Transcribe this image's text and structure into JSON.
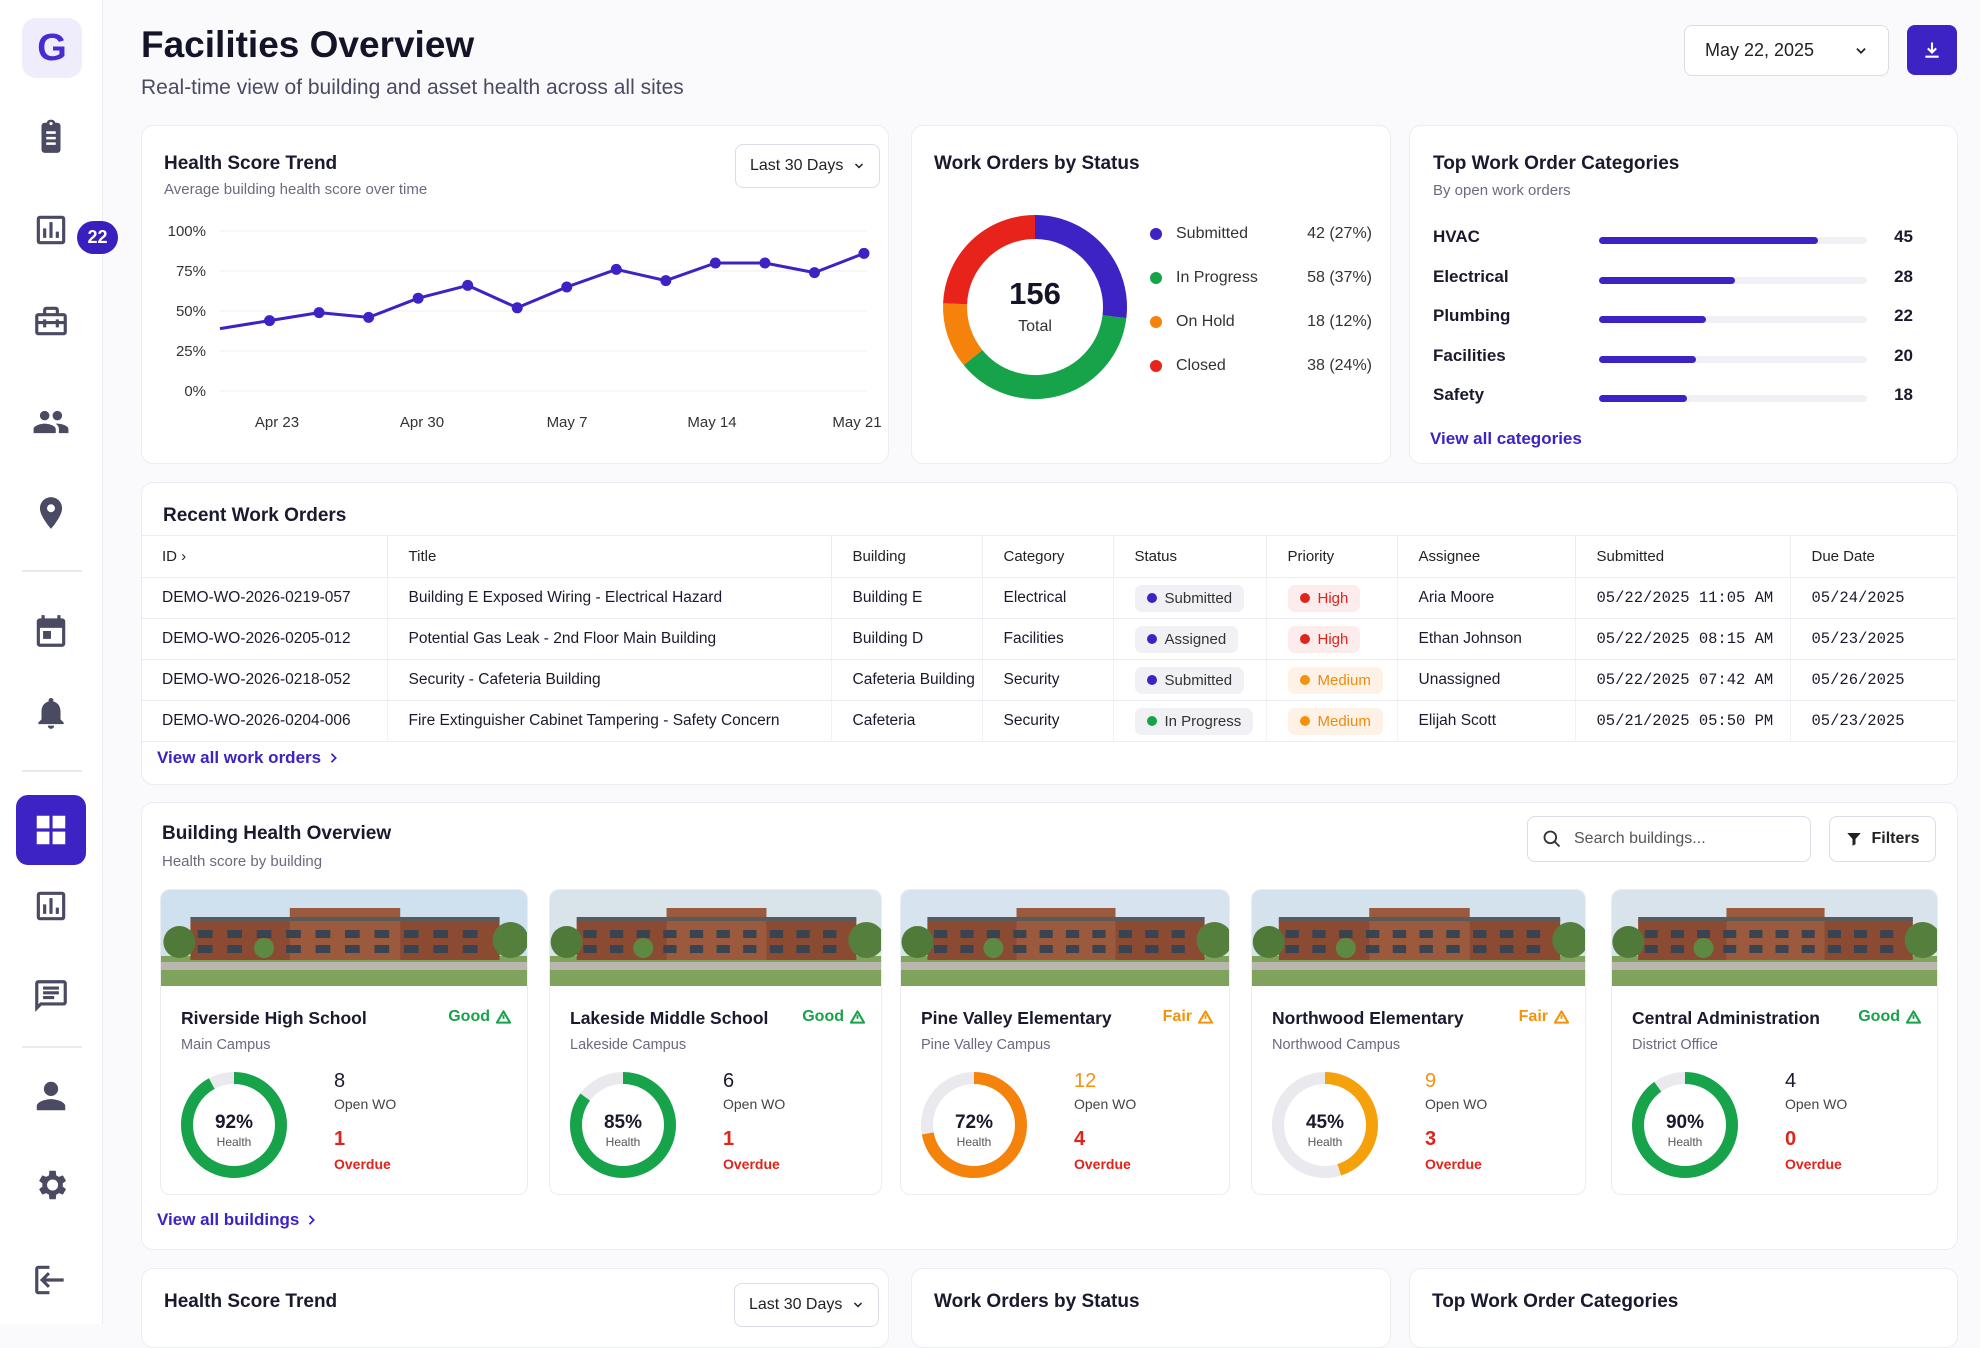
{
  "app": {
    "logo_letter": "G",
    "notification_count": "22"
  },
  "header": {
    "title": "Facilities Overview",
    "subtitle": "Real-time view of building and asset health across all sites",
    "date": "May 22, 2025"
  },
  "health_trend": {
    "title": "Health Score Trend",
    "subtitle": "Average building health score over time",
    "range": "Last 30 Days",
    "chart_data": {
      "type": "line",
      "x_tick_labels": [
        "Apr 23",
        "Apr 30",
        "May 7",
        "May 14",
        "May 21"
      ],
      "y_tick_labels": [
        "100%",
        "75%",
        "50%",
        "25%",
        "0%"
      ],
      "ylim": [
        0,
        100
      ],
      "values": [
        39,
        44,
        49,
        46,
        58,
        66,
        52,
        65,
        76,
        69,
        80,
        80,
        74,
        86
      ],
      "color": "#3d22c4"
    }
  },
  "work_orders_status": {
    "title": "Work Orders by Status",
    "total": "156",
    "total_label": "Total",
    "chart_data": {
      "type": "pie",
      "slices": [
        {
          "label": "Submitted",
          "value": 42,
          "display": "42 (27%)",
          "color": "#3d22c4"
        },
        {
          "label": "In Progress",
          "value": 58,
          "display": "58 (37%)",
          "color": "#16a34a"
        },
        {
          "label": "On Hold",
          "value": 18,
          "display": "18 (12%)",
          "color": "#f5820b"
        },
        {
          "label": "Closed",
          "value": 38,
          "display": "38 (24%)",
          "color": "#e8231b"
        }
      ]
    }
  },
  "categories": {
    "title": "Top Work Order Categories",
    "subtitle": "By open work orders",
    "link": "View all categories",
    "chart_data": {
      "type": "bar",
      "categories": [
        "HVAC",
        "Electrical",
        "Plumbing",
        "Facilities",
        "Safety"
      ],
      "values": [
        45,
        28,
        22,
        20,
        18
      ],
      "xlim": [
        0,
        55
      ]
    }
  },
  "recent": {
    "title": "Recent Work Orders",
    "columns": [
      "ID",
      "Title",
      "Building",
      "Category",
      "Status",
      "Priority",
      "Assignee",
      "Submitted",
      "Due Date"
    ],
    "rows": [
      {
        "id": "DEMO-WO-2026-0219-057",
        "title": "Building E Exposed Wiring - Electrical Hazard",
        "building": "Building E",
        "category": "Electrical",
        "status": "Submitted",
        "priority": "High",
        "assignee": "Aria Moore",
        "submitted": "05/22/2025 11:05 AM",
        "due": "05/24/2025"
      },
      {
        "id": "DEMO-WO-2026-0205-012",
        "title": "Potential Gas Leak - 2nd Floor Main Building",
        "building": "Building D",
        "category": "Facilities",
        "status": "Assigned",
        "priority": "High",
        "assignee": "Ethan Johnson",
        "submitted": "05/22/2025 08:15 AM",
        "due": "05/23/2025"
      },
      {
        "id": "DEMO-WO-2026-0218-052",
        "title": "Security - Cafeteria Building",
        "building": "Cafeteria Building",
        "category": "Security",
        "status": "Submitted",
        "priority": "Medium",
        "assignee": "Unassigned",
        "submitted": "05/22/2025 07:42 AM",
        "due": "05/26/2025"
      },
      {
        "id": "DEMO-WO-2026-0204-006",
        "title": "Fire Extinguisher Cabinet Tampering - Safety Concern",
        "building": "Cafeteria",
        "category": "Security",
        "status": "In Progress",
        "priority": "Medium",
        "assignee": "Elijah Scott",
        "submitted": "05/21/2025 05:50 PM",
        "due": "05/23/2025"
      }
    ],
    "link": "View all work orders"
  },
  "buildings": {
    "title": "Building Health Overview",
    "subtitle": "Health score by building",
    "search_placeholder": "Search buildings...",
    "filters_label": "Filters",
    "link": "View all buildings",
    "items": [
      {
        "name": "Riverside High School",
        "status": "Good",
        "campus": "Main Campus",
        "health": 92,
        "health_label": "92%",
        "open_wo": "8",
        "overdue": "1",
        "color": "#16a34a"
      },
      {
        "name": "Lakeside Middle School",
        "status": "Good",
        "campus": "Lakeside Campus",
        "health": 85,
        "health_label": "85%",
        "open_wo": "6",
        "overdue": "1",
        "color": "#16a34a"
      },
      {
        "name": "Pine Valley Elementary",
        "status": "Fair",
        "campus": "Pine Valley Campus",
        "health": 72,
        "health_label": "72%",
        "open_wo": "12",
        "overdue": "4",
        "color": "#f5820b"
      },
      {
        "name": "Northwood Elementary",
        "status": "Fair",
        "campus": "Northwood Campus",
        "health": 45,
        "health_label": "45%",
        "open_wo": "9",
        "overdue": "3",
        "color": "#f5a10b"
      },
      {
        "name": "Central Administration",
        "status": "Good",
        "campus": "District Office",
        "health": 90,
        "health_label": "90%",
        "open_wo": "4",
        "overdue": "0",
        "color": "#16a34a"
      }
    ],
    "labels": {
      "health": "Health",
      "open_wo": "Open WO",
      "overdue": "Overdue"
    }
  },
  "repeat": {
    "health_title": "Health Score Trend",
    "health_range": "Last 30 Days",
    "status_title": "Work Orders by Status",
    "cat_title": "Top Work Order Categories"
  }
}
